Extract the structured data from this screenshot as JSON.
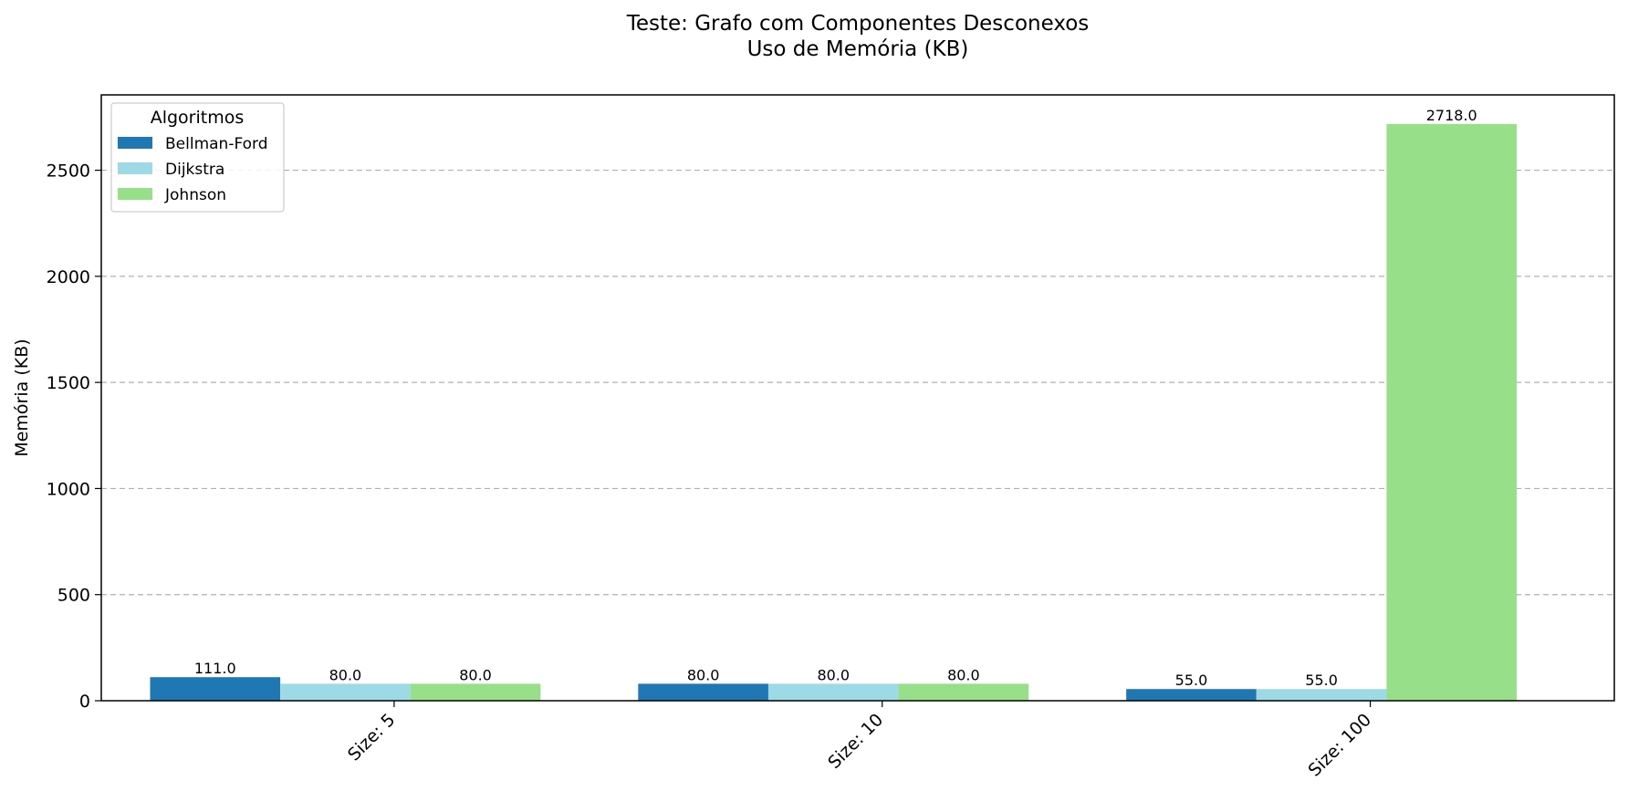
{
  "chart_data": {
    "type": "bar",
    "title": "Teste: Grafo com Componentes Desconexos",
    "subtitle": "Uso de Memória (KB)",
    "xlabel": "",
    "ylabel": "Memória (KB)",
    "categories": [
      "Size: 5",
      "Size: 10",
      "Size: 100"
    ],
    "series": [
      {
        "name": "Bellman-Ford",
        "color": "#1f77b4",
        "values": [
          111.0,
          80.0,
          55.0
        ],
        "labels": [
          "111.0",
          "80.0",
          "55.0"
        ]
      },
      {
        "name": "Dijkstra",
        "color": "#9edae5",
        "values": [
          80.0,
          80.0,
          55.0
        ],
        "labels": [
          "80.0",
          "80.0",
          "55.0"
        ]
      },
      {
        "name": "Johnson",
        "color": "#98df8a",
        "values": [
          80.0,
          80.0,
          2718.0
        ],
        "labels": [
          "80.0",
          "80.0",
          "2718.0"
        ]
      }
    ],
    "ylim": [
      0,
      2855
    ],
    "yticks": [
      0,
      500,
      1000,
      1500,
      2000,
      2500
    ],
    "grid": "y-dashed",
    "legend": {
      "title": "Algoritmos",
      "placement": "top-left"
    }
  }
}
